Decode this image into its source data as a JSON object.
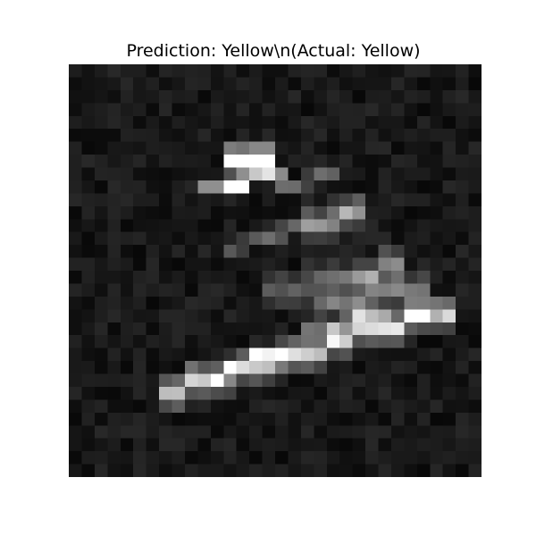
{
  "title": "Prediction: Yellow\\n(Actual: Yellow)",
  "image": {
    "kind": "grayscale-pixel-image",
    "grid_size": 32,
    "colormap": "gray"
  }
}
